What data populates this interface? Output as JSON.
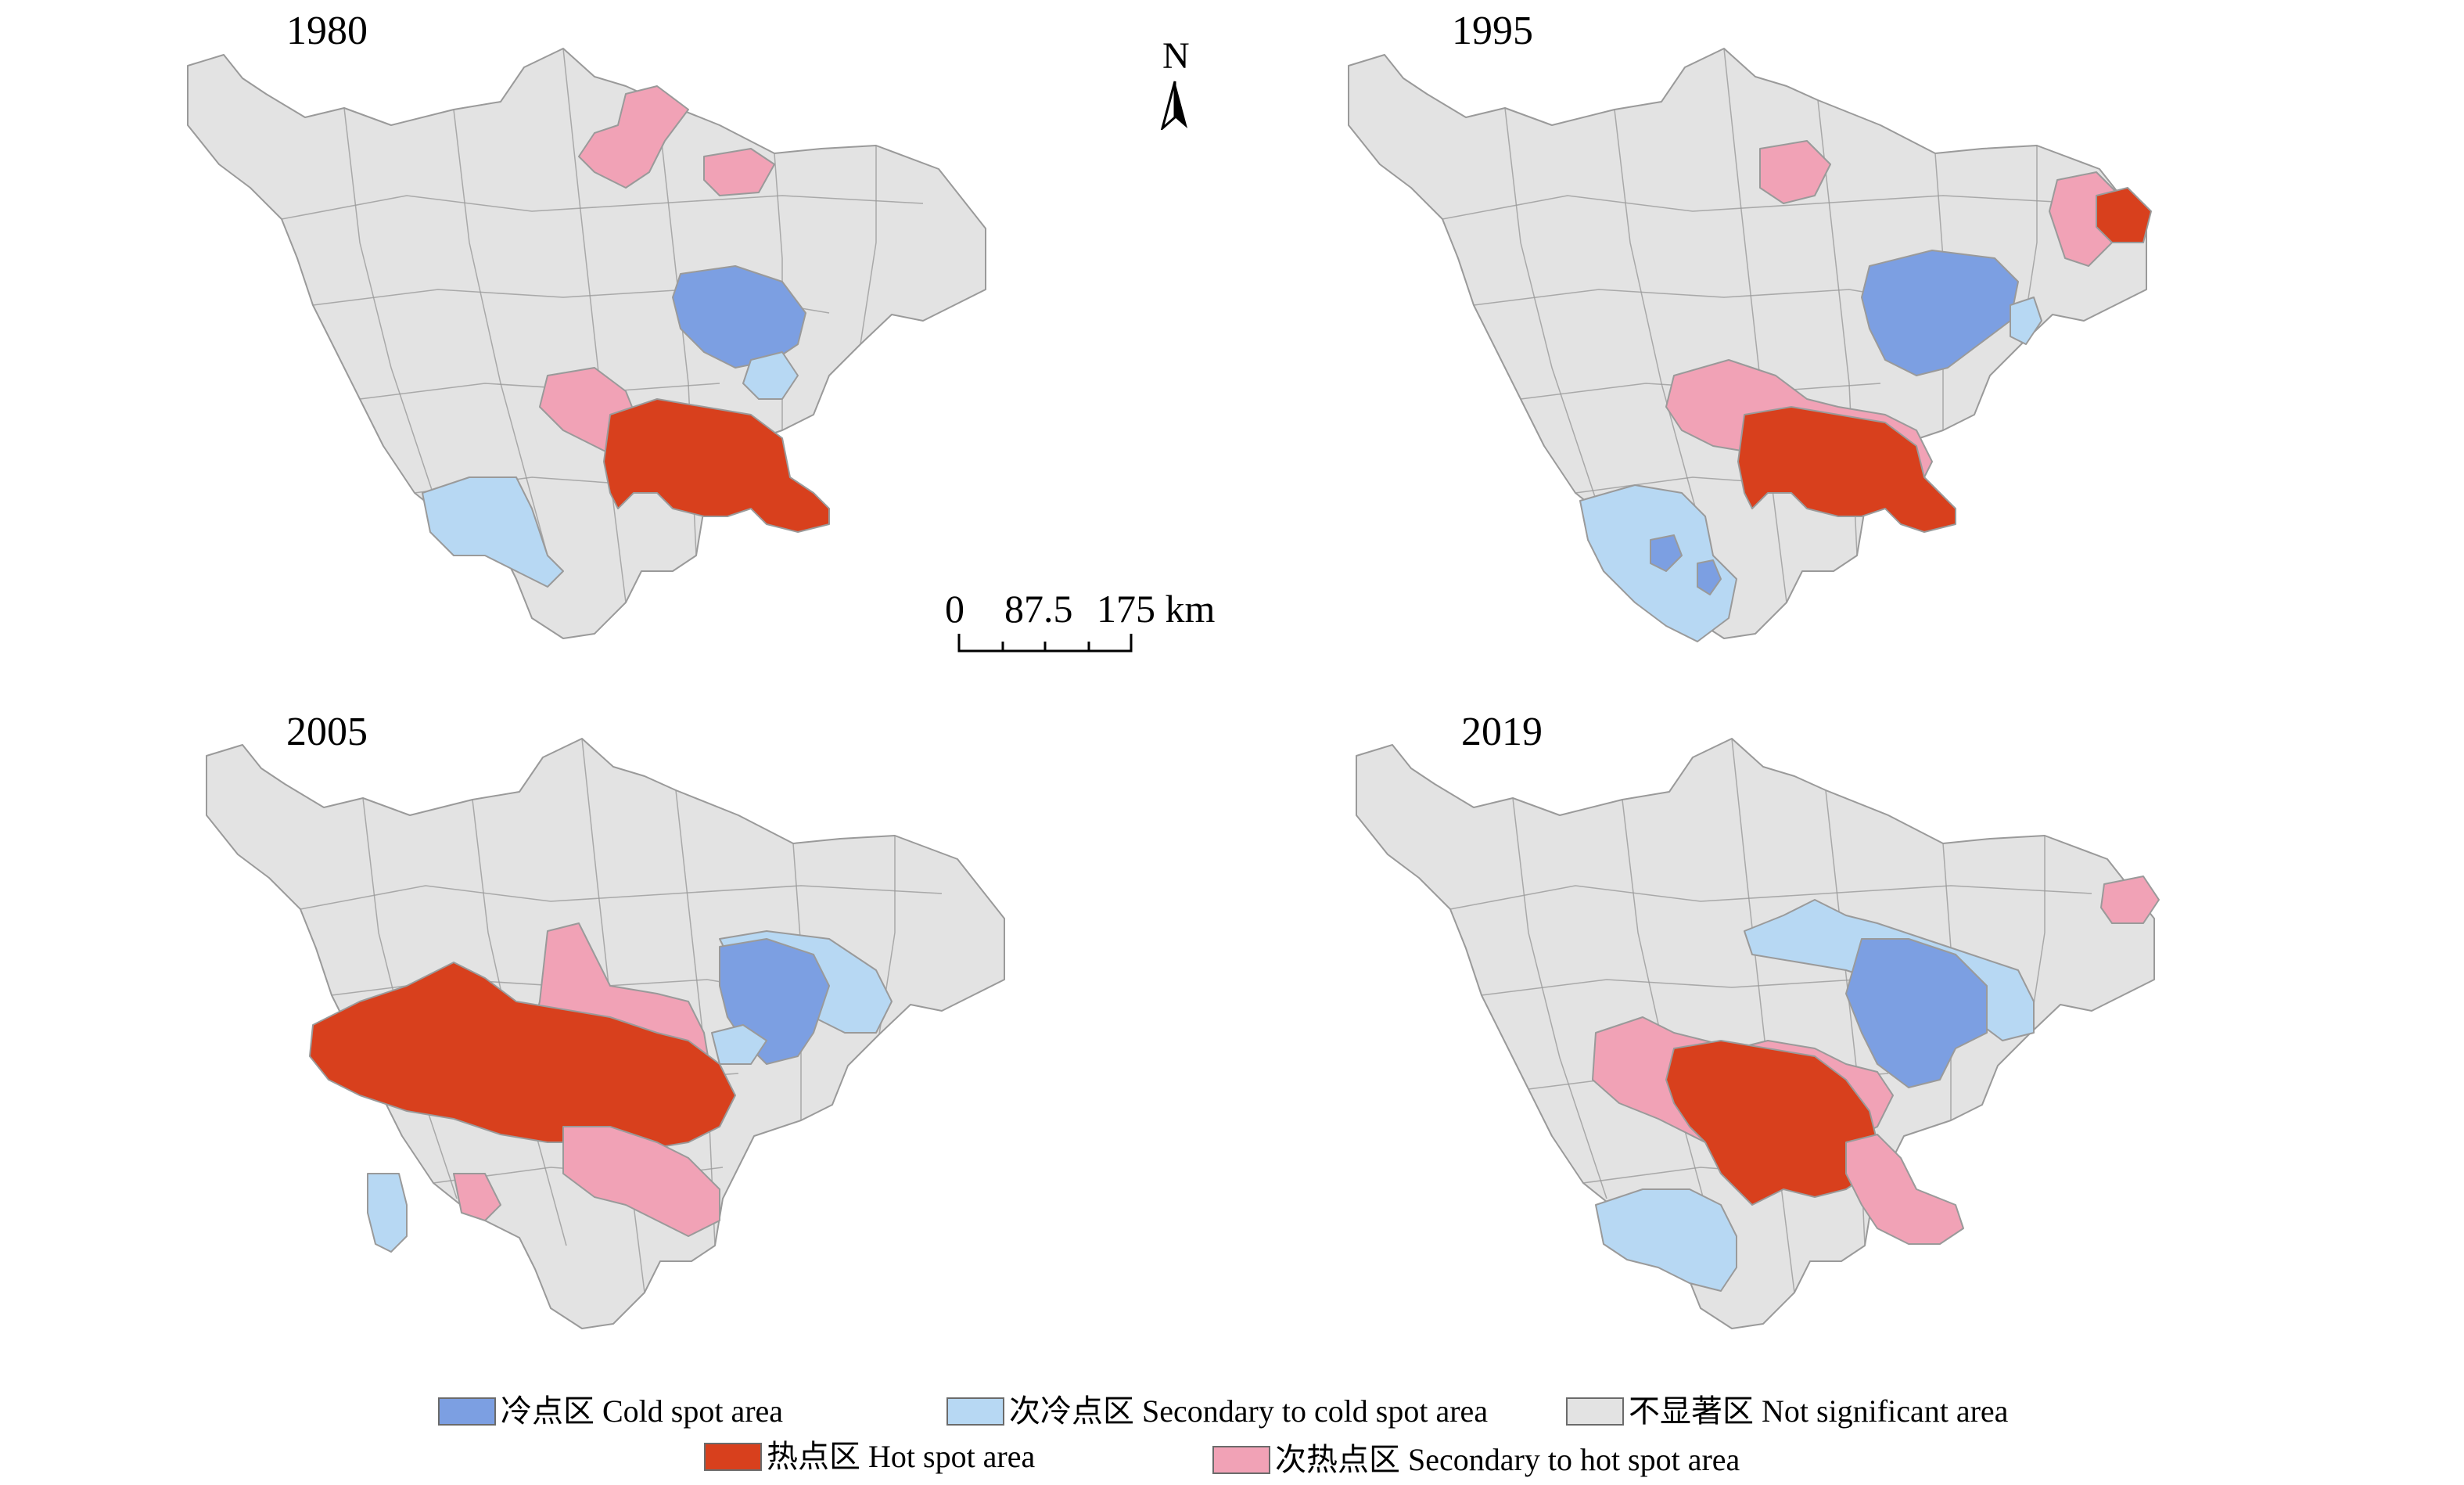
{
  "colors": {
    "cold": "#7c9fe2",
    "secondary_cold": "#b7d8f3",
    "not_significant": "#e3e3e3",
    "hot": "#d8401d",
    "secondary_hot": "#f1a2b6",
    "boundary": "#9a9a9a"
  },
  "north_arrow": {
    "label": "N",
    "icon": "north-arrow-icon"
  },
  "scale_bar": {
    "labels": [
      "0",
      "87.5",
      "175 km"
    ]
  },
  "panels": [
    {
      "year": "1980"
    },
    {
      "year": "1995"
    },
    {
      "year": "2005"
    },
    {
      "year": "2019"
    }
  ],
  "legend": [
    {
      "label": "冷点区 Cold spot area",
      "color": "#7c9fe2"
    },
    {
      "label": "次冷点区 Secondary to cold spot area",
      "color": "#b7d8f3"
    },
    {
      "label": "不显著区 Not significant area",
      "color": "#e3e3e3"
    },
    {
      "label": "热点区 Hot spot area",
      "color": "#d8401d"
    },
    {
      "label": "次热点区 Secondary to hot spot area",
      "color": "#f1a2b6"
    }
  ]
}
